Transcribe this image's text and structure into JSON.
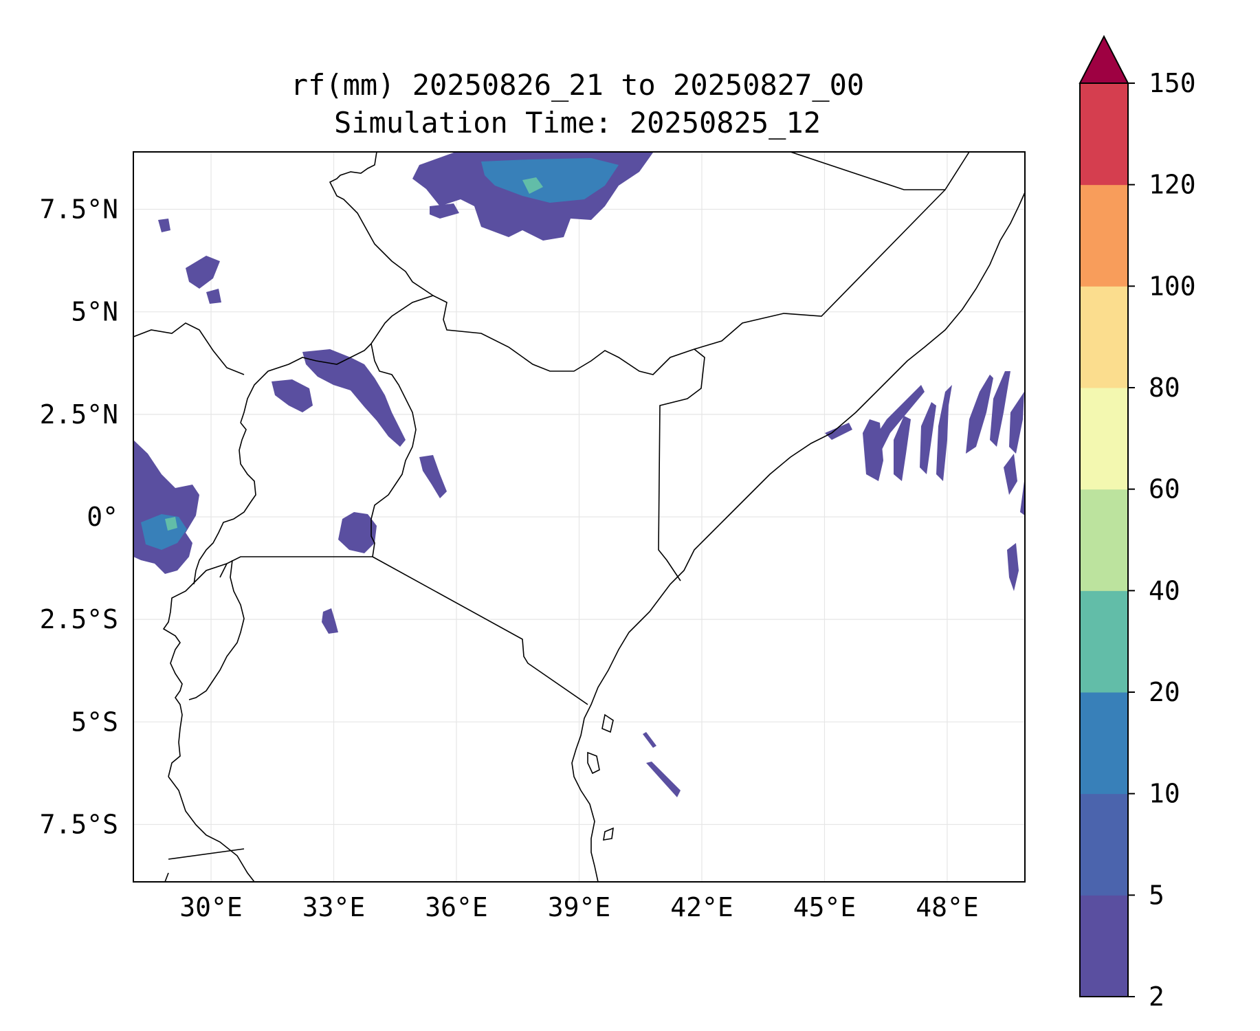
{
  "title_line1": "rf(mm) 20250826_21 to 20250827_00",
  "title_line2": "Simulation Time: 20250825_12",
  "map": {
    "lon_range": [
      28.1,
      49.9
    ],
    "lat_range": [
      -8.9,
      8.9
    ],
    "x_ticks": [
      "30°E",
      "33°E",
      "36°E",
      "39°E",
      "42°E",
      "45°E",
      "48°E"
    ],
    "y_ticks": [
      "7.5°N",
      "5°N",
      "2.5°N",
      "0°",
      "2.5°S",
      "5°S",
      "7.5°S"
    ],
    "x_tick_values": [
      30,
      33,
      36,
      39,
      42,
      45,
      48
    ],
    "y_tick_values": [
      7.5,
      5,
      2.5,
      0,
      -2.5,
      -5,
      -7.5
    ]
  },
  "colorbar": {
    "levels": [
      "2",
      "5",
      "10",
      "20",
      "40",
      "60",
      "80",
      "100",
      "120",
      "150"
    ],
    "colors": [
      "#5a4fa0",
      "#4b64ad",
      "#3880b9",
      "#62bda8",
      "#bce39e",
      "#f3f8b0",
      "#fbdd8e",
      "#f89d5b",
      "#d53e4f",
      "#9e0142"
    ],
    "extend": "max"
  }
}
